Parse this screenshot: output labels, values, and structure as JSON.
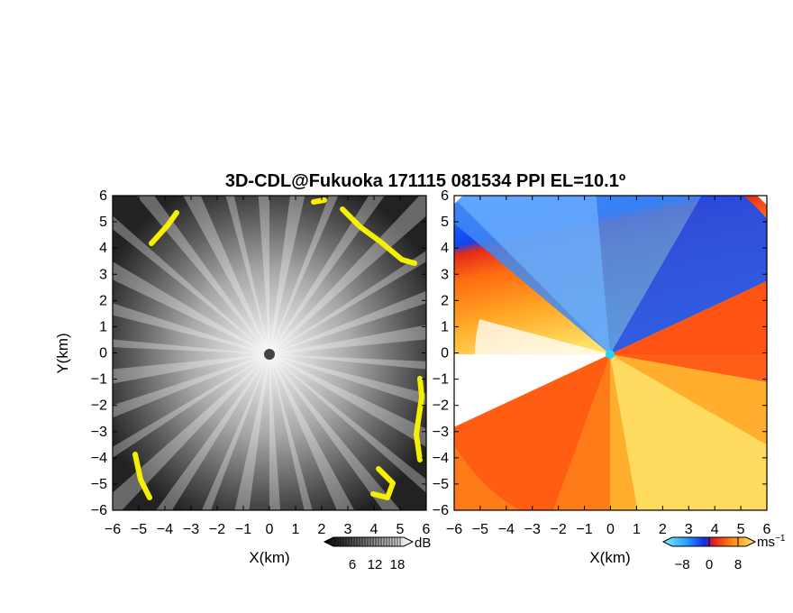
{
  "chart_data": [
    {
      "type": "heatmap",
      "panel": "reflectivity",
      "title": "3D-CDL@Fukuoka 171115 081534 PPI EL=10.1º",
      "xlabel": "X(km)",
      "ylabel": "Y(km)",
      "xlim": [
        -6,
        6
      ],
      "ylim": [
        -6,
        6
      ],
      "x_ticks": [
        "−6",
        "−5",
        "−4",
        "−3",
        "−2",
        "−1",
        "0",
        "1",
        "2",
        "3",
        "4",
        "5",
        "6"
      ],
      "y_ticks": [
        "6",
        "5",
        "4",
        "3",
        "2",
        "1",
        "0",
        "−1",
        "−2",
        "−3",
        "−4",
        "−5",
        "−6"
      ],
      "colorscale": "grayscale to yellow",
      "colorbar": {
        "ticks": [
          "6",
          "12",
          "18"
        ],
        "unit": "dB"
      }
    },
    {
      "type": "heatmap",
      "panel": "doppler velocity",
      "xlabel": "X(km)",
      "xlim": [
        -6,
        6
      ],
      "ylim": [
        -6,
        6
      ],
      "x_ticks": [
        "−6",
        "−5",
        "−4",
        "−3",
        "−2",
        "−1",
        "0",
        "1",
        "2",
        "3",
        "4",
        "5",
        "6"
      ],
      "y_ticks": [
        "6",
        "5",
        "4",
        "3",
        "2",
        "1",
        "0",
        "−1",
        "−2",
        "−3",
        "−4",
        "−5",
        "−6"
      ],
      "colorscale": "cyan-blue (negative) to red-orange-yellow (positive)",
      "colorbar": {
        "ticks": [
          "−8",
          "0",
          "8"
        ],
        "unit": "ms",
        "unit_exp": "−1"
      }
    }
  ],
  "colors": {
    "gray_dark": "#1e1e1e",
    "gray_light": "#f2f2f2",
    "yellow": "#f5ef00",
    "blue_dark": "#0a2ee8",
    "blue_light": "#5aa6ff",
    "cyan": "#2ad0f0",
    "red": "#e61e1e",
    "orange": "#ff7a10",
    "light_yellow": "#ffec6a"
  }
}
